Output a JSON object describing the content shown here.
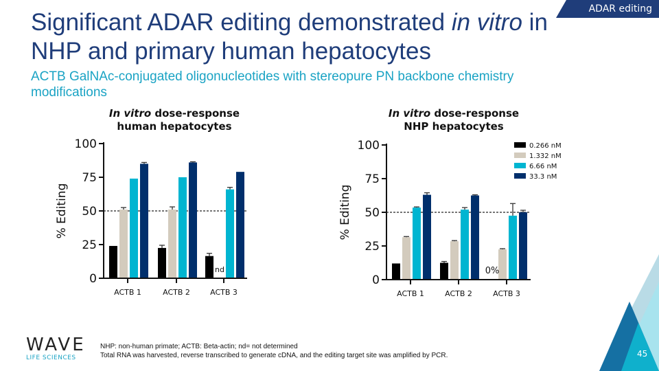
{
  "header": {
    "tag": "ADAR editing",
    "title_part1": "Significant ADAR editing demonstrated ",
    "title_italic1": "in vitro",
    "title_part2": " in NHP and primary human hepatocytes",
    "subtitle": "ACTB GalNAc-conjugated oligonucleotides with stereopure PN backbone chemistry modifications"
  },
  "footer": {
    "note1": "NHP: non-human primate; ACTB: Beta-actin; nd= not determined",
    "note2": "Total RNA was harvested, reverse transcribed to generate cDNA, and the editing target site was amplified by PCR.",
    "page": "45",
    "logo_main": "WAVE",
    "logo_sub": "LIFE SCIENCES"
  },
  "colors": {
    "brand": "#1f3d7a",
    "accent": "#1aa3c4"
  },
  "chart_data": [
    {
      "type": "bar",
      "title_italic": "In vitro",
      "title_rest": " dose-response",
      "title_line2": "human hepatocytes",
      "ylabel": "% Editing",
      "ylim": [
        0,
        100
      ],
      "yticks": [
        0,
        25,
        50,
        75,
        100
      ],
      "reference_line": 50,
      "categories": [
        "ACTB 1",
        "ACTB 2",
        "ACTB 3"
      ],
      "series": [
        {
          "name": "0.266 nM",
          "color": "#000000",
          "values": [
            24,
            22.5,
            16.5
          ],
          "errors": [
            0,
            2,
            2
          ]
        },
        {
          "name": "1.332 nM",
          "color": "#d3cbbd",
          "values": [
            51,
            51,
            null
          ],
          "errors": [
            1.5,
            2,
            0
          ]
        },
        {
          "name": "6.66 nM",
          "color": "#00b5d1",
          "values": [
            74,
            75,
            66
          ],
          "errors": [
            0,
            0,
            1.5
          ]
        },
        {
          "name": "33.3 nM",
          "color": "#002f6c",
          "values": [
            85,
            86,
            79
          ],
          "errors": [
            1,
            0.5,
            0
          ]
        }
      ],
      "annotations": [
        {
          "category": "ACTB 3",
          "series": "1.332 nM",
          "text": "nd"
        }
      ]
    },
    {
      "type": "bar",
      "title_italic": "In vitro",
      "title_rest": " dose-response",
      "title_line2": "NHP hepatocytes",
      "ylabel": "% Editing",
      "ylim": [
        0,
        100
      ],
      "yticks": [
        0,
        25,
        50,
        75,
        100
      ],
      "reference_line": 50,
      "legend": "top-right",
      "categories": [
        "ACTB 1",
        "ACTB 2",
        "ACTB 3"
      ],
      "series": [
        {
          "name": "0.266 nM",
          "color": "#000000",
          "values": [
            12,
            12.5,
            0
          ],
          "errors": [
            0,
            1,
            0
          ]
        },
        {
          "name": "1.332 nM",
          "color": "#d3cbbd",
          "values": [
            31.5,
            28.5,
            22.5
          ],
          "errors": [
            0.5,
            0.5,
            0.5
          ]
        },
        {
          "name": "6.66 nM",
          "color": "#00b5d1",
          "values": [
            53.5,
            52,
            47.5
          ],
          "errors": [
            0.5,
            1.5,
            9
          ]
        },
        {
          "name": "33.3 nM",
          "color": "#002f6c",
          "values": [
            63,
            62.5,
            50
          ],
          "errors": [
            1.5,
            0.5,
            1.5
          ]
        }
      ],
      "annotations": [
        {
          "category": "ACTB 3",
          "series": "0.266 nM",
          "text": "0%"
        }
      ]
    }
  ]
}
